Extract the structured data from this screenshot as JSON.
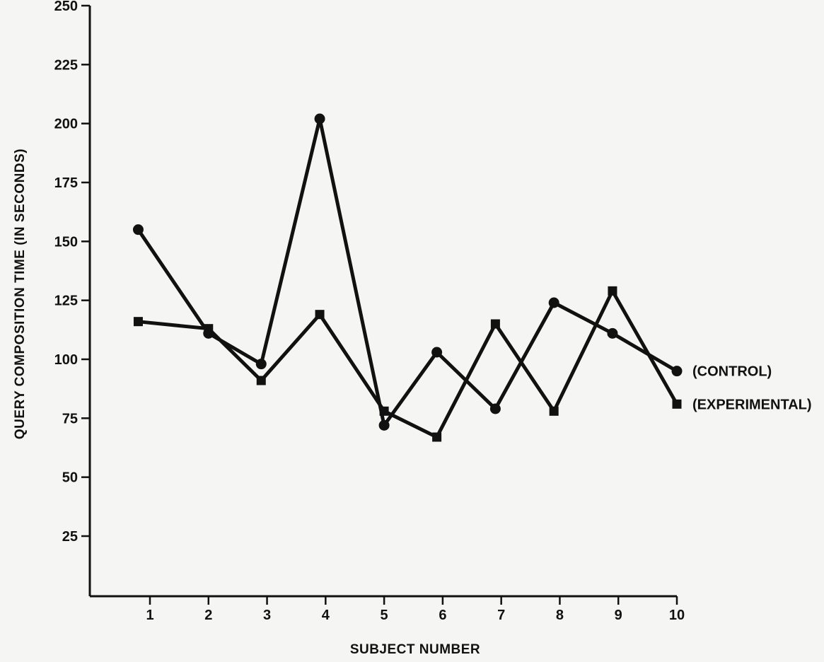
{
  "chart_data": {
    "type": "line",
    "title": "",
    "xlabel": "SUBJECT NUMBER",
    "ylabel": "QUERY COMPOSITION TIME (IN SECONDS)",
    "xlim": [
      0.2,
      10.2
    ],
    "ylim": [
      0,
      250
    ],
    "x_ticks": [
      1,
      2,
      3,
      4,
      5,
      6,
      7,
      8,
      9,
      10
    ],
    "y_ticks": [
      25,
      50,
      75,
      100,
      125,
      150,
      175,
      200,
      225,
      250
    ],
    "grid": false,
    "legend": "end-of-line labels",
    "series": [
      {
        "name": "(CONTROL)",
        "marker": "circle",
        "x": [
          0.8,
          2.0,
          2.9,
          3.9,
          5.0,
          5.9,
          6.9,
          7.9,
          8.9,
          10.0
        ],
        "values": [
          155,
          111,
          98,
          202,
          72,
          103,
          79,
          124,
          111,
          95
        ]
      },
      {
        "name": "(EXPERIMENTAL)",
        "marker": "square",
        "x": [
          0.8,
          2.0,
          2.9,
          3.9,
          5.0,
          5.9,
          6.9,
          7.9,
          8.9,
          10.0
        ],
        "values": [
          116,
          113,
          91,
          119,
          78,
          67,
          115,
          78,
          129,
          81
        ]
      }
    ],
    "colors": {
      "line": "#111111",
      "background": "#f5f5f3"
    }
  }
}
